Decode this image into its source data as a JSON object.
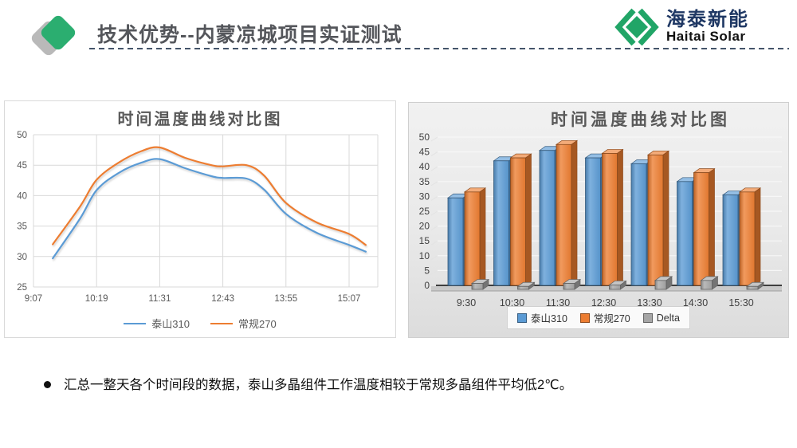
{
  "header": {
    "title": "技术优势--内蒙凉城项目实证测试"
  },
  "logo": {
    "name_cn": "海泰新能",
    "name_en": "Haitai Solar",
    "brand_green": "#21a567",
    "brand_navy": "#1f3864"
  },
  "chart_data": [
    {
      "type": "line",
      "title": "时间温度曲线对比图",
      "x_tick_labels": [
        "9:07",
        "10:19",
        "11:31",
        "12:43",
        "13:55",
        "15:07"
      ],
      "minutes_per_tick": 72,
      "ylim": [
        25,
        50
      ],
      "y_ticks": [
        25,
        30,
        35,
        40,
        45,
        50
      ],
      "grid": true,
      "legend_position": "bottom",
      "series": [
        {
          "name": "泰山310",
          "color": "#5B9BD5",
          "points": [
            [
              "9:29",
              29.7
            ],
            [
              "10:00",
              36.2
            ],
            [
              "10:19",
              40.9
            ],
            [
              "10:45",
              43.8
            ],
            [
              "11:10",
              45.4
            ],
            [
              "11:31",
              46.0
            ],
            [
              "12:00",
              44.5
            ],
            [
              "12:30",
              43.2
            ],
            [
              "12:43",
              42.9
            ],
            [
              "13:10",
              42.8
            ],
            [
              "13:30",
              41.0
            ],
            [
              "13:55",
              37.0
            ],
            [
              "14:30",
              33.9
            ],
            [
              "15:07",
              31.9
            ],
            [
              "15:26",
              30.8
            ]
          ]
        },
        {
          "name": "常规270",
          "color": "#ED7D31",
          "points": [
            [
              "9:29",
              32.0
            ],
            [
              "10:00",
              38.2
            ],
            [
              "10:19",
              42.6
            ],
            [
              "10:45",
              45.5
            ],
            [
              "11:10",
              47.3
            ],
            [
              "11:31",
              47.9
            ],
            [
              "12:00",
              46.2
            ],
            [
              "12:30",
              45.0
            ],
            [
              "12:43",
              44.8
            ],
            [
              "13:10",
              45.0
            ],
            [
              "13:30",
              43.3
            ],
            [
              "13:55",
              38.8
            ],
            [
              "14:30",
              35.6
            ],
            [
              "15:07",
              33.7
            ],
            [
              "15:26",
              31.9
            ]
          ]
        }
      ]
    },
    {
      "type": "bar",
      "subtype": "3d-clustered",
      "title": "时间温度曲线对比图",
      "categories": [
        "9:30",
        "10:30",
        "11:30",
        "12:30",
        "13:30",
        "14:30",
        "15:30"
      ],
      "ylim": [
        0,
        50
      ],
      "y_ticks": [
        0,
        5,
        10,
        15,
        20,
        25,
        30,
        35,
        40,
        45,
        50
      ],
      "grid": true,
      "legend_position": "bottom",
      "series": [
        {
          "name": "泰山310",
          "color": "#5B9BD5",
          "values": [
            29.5,
            42,
            45.5,
            43,
            41,
            35,
            30.5
          ]
        },
        {
          "name": "常规270",
          "color": "#ED7D31",
          "values": [
            31.5,
            43,
            47.5,
            44.5,
            44,
            38,
            31.5
          ]
        },
        {
          "name": "Delta",
          "color": "#A6A6A6",
          "values": [
            2,
            1,
            2,
            1.5,
            3,
            3,
            1
          ]
        }
      ]
    }
  ],
  "bullet": {
    "text": "汇总一整天各个时间段的数据，泰山多晶组件工作温度相较于常规多晶组件平均低2℃。"
  }
}
